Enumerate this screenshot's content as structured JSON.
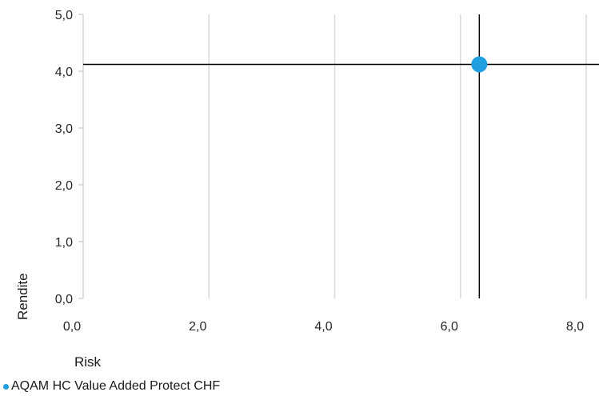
{
  "chart_data": {
    "type": "scatter",
    "xlabel": "Risk",
    "ylabel": "Rendite",
    "xlim": [
      0,
      8
    ],
    "ylim": [
      0,
      5
    ],
    "x_ticks": [
      "0,0",
      "2,0",
      "4,0",
      "6,0",
      "8,0"
    ],
    "y_ticks": [
      "0,0",
      "1,0",
      "2,0",
      "3,0",
      "4,0",
      "5,0"
    ],
    "grid": "vertical",
    "legend_position": "bottom-left",
    "series": [
      {
        "name": "AQAM HC Value Added Protect CHF",
        "color": "#1f9ee0",
        "points": [
          {
            "x": 6.3,
            "y": 4.12
          }
        ]
      }
    ],
    "crosshair": {
      "x": 6.3,
      "y": 4.12,
      "color": "#000000"
    }
  }
}
